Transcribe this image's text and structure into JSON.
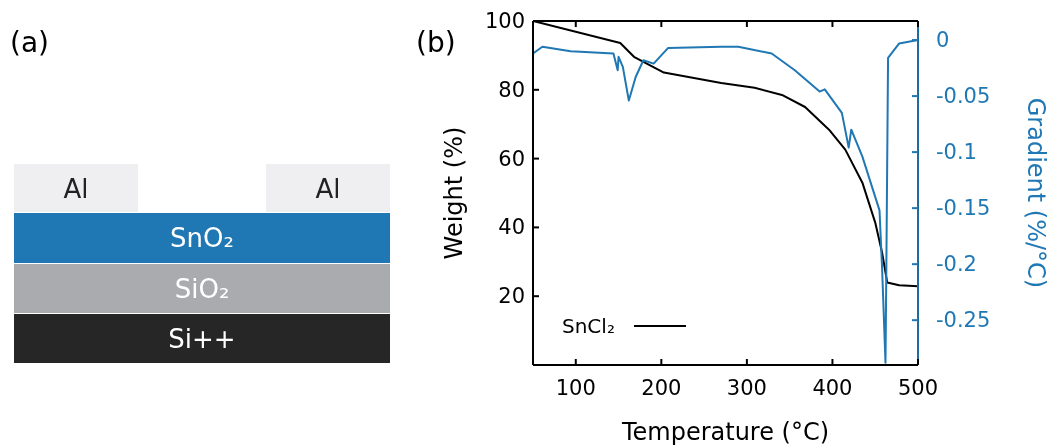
{
  "chart_data": [
    {
      "type": "other",
      "title": "(a)",
      "annotations": [
        "Al",
        "Al",
        "SnO₂",
        "SiO₂",
        "Si++"
      ]
    },
    {
      "type": "line",
      "title": "(b)",
      "xlabel": "Temperature (°C)",
      "ylabel": "Weight (%)",
      "y2label": "Gradient (%/°C)",
      "xlim": [
        50,
        500
      ],
      "xticks": [
        100,
        200,
        300,
        400,
        500
      ],
      "ylim": [
        0,
        100
      ],
      "yticks": [
        20,
        40,
        60,
        80,
        100
      ],
      "y2lim": [
        -0.29,
        0.017
      ],
      "y2ticks": [
        0,
        -0.05,
        -0.1,
        -0.15,
        -0.2,
        -0.25
      ],
      "grid": false,
      "legend": "bottom left",
      "line_style": "solid",
      "series": [
        {
          "name": "SnCl₂",
          "color": "#000000",
          "x": [
            50,
            152,
            168,
            203,
            270,
            309,
            341,
            368,
            396,
            415,
            435,
            450,
            458,
            464,
            478,
            500
          ],
          "values": [
            100,
            93.6,
            89.6,
            85,
            82,
            80.6,
            78.5,
            75,
            68.4,
            62.6,
            53,
            41.4,
            32.7,
            24,
            23.2,
            22.9
          ]
        },
        {
          "color": "#1f77b4",
          "axis": "y2",
          "x": [
            50,
            61,
            94,
            144,
            149,
            150,
            155,
            162,
            170,
            179,
            191,
            208,
            270,
            290,
            329,
            356,
            385,
            391,
            411,
            419,
            422,
            435,
            455,
            458,
            462,
            463,
            465,
            478,
            500
          ],
          "values": [
            -0.012,
            -0.006,
            -0.01,
            -0.012,
            -0.027,
            -0.015,
            -0.024,
            -0.054,
            -0.033,
            -0.018,
            -0.021,
            -0.007,
            -0.006,
            -0.006,
            -0.012,
            -0.027,
            -0.046,
            -0.044,
            -0.065,
            -0.096,
            -0.08,
            -0.104,
            -0.152,
            -0.203,
            -0.288,
            -0.203,
            -0.016,
            -0.003,
            0
          ]
        }
      ]
    }
  ]
}
